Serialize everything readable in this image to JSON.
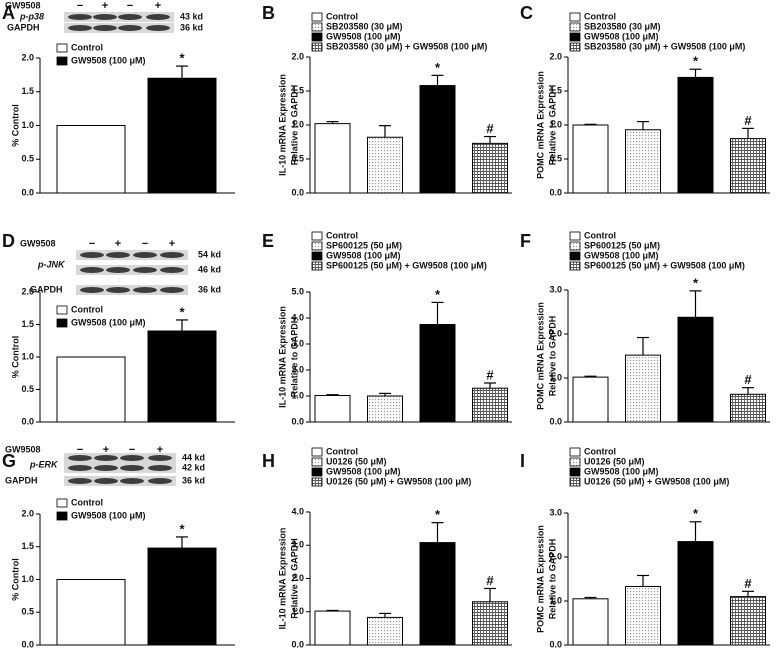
{
  "chart_data": [
    {
      "type": "bar",
      "label": "A",
      "blot": {
        "lanes_label": "GW9508",
        "lanes": [
          "−",
          "+",
          "−",
          "+"
        ],
        "rows": [
          "p-p38",
          "GAPDH"
        ],
        "sizes": [
          "43 kd",
          "36 kd"
        ]
      },
      "ylabel": [
        "% Control"
      ],
      "ylim": [
        0,
        2.0
      ],
      "yticks": [
        {
          "value": 0,
          "label": "0.0"
        },
        0.5,
        {
          "value": 1,
          "label": "1.0"
        },
        1.5,
        {
          "value": 2,
          "label": "2.0"
        }
      ],
      "series": [
        {
          "name": "Control",
          "color": "#ffffff",
          "values": [
            1.0
          ]
        },
        {
          "name": "GW9508 (100 μM)",
          "color": "#000000",
          "values": [
            1.7
          ],
          "errors": [
            0.18
          ],
          "annotation": "*"
        }
      ]
    },
    {
      "type": "bar",
      "label": "B",
      "ylabel": [
        "IL-10 mRNA Expression",
        "Relative to GAPDH"
      ],
      "ylim": [
        0,
        2.0
      ],
      "yticks": [
        {
          "value": 0,
          "label": "0.0"
        },
        0.5,
        {
          "value": 1,
          "label": "1.0"
        },
        1.5,
        {
          "value": 2,
          "label": "2.0"
        }
      ],
      "series": [
        {
          "name": "Control",
          "color": "#ffffff",
          "values": [
            1.02
          ],
          "errors": [
            0.03
          ]
        },
        {
          "name": "SB203580 (30 μM)",
          "color": "#9a9a9a",
          "pattern": "dots",
          "values": [
            0.82
          ],
          "errors": [
            0.17
          ]
        },
        {
          "name": "GW9508 (100 μM)",
          "color": "#000000",
          "values": [
            1.58
          ],
          "errors": [
            0.15
          ],
          "annotation": "*"
        },
        {
          "name": "SB203580 (30 μM) + GW9508 (100 μM)",
          "color": "#555555",
          "pattern": "grid",
          "values": [
            0.73
          ],
          "errors": [
            0.1
          ],
          "annotation": "#"
        }
      ]
    },
    {
      "type": "bar",
      "label": "C",
      "ylabel": [
        "POMC mRNA Expression",
        "Relative to GAPDH"
      ],
      "ylim": [
        0,
        2.0
      ],
      "yticks": [
        {
          "value": 0,
          "label": "0.0"
        },
        0.5,
        {
          "value": 1,
          "label": "1.0"
        },
        1.5,
        {
          "value": 2,
          "label": "2.0"
        }
      ],
      "series": [
        {
          "name": "Control",
          "color": "#ffffff",
          "values": [
            1.0
          ],
          "errors": [
            0.01
          ]
        },
        {
          "name": "SB203580 (30 μM)",
          "color": "#9a9a9a",
          "pattern": "dots",
          "values": [
            0.93
          ],
          "errors": [
            0.12
          ]
        },
        {
          "name": "GW9508 (100 μM)",
          "color": "#000000",
          "values": [
            1.7
          ],
          "errors": [
            0.12
          ],
          "annotation": "*"
        },
        {
          "name": "SB203580 (30 μM) + GW9508 (100 μM)",
          "color": "#555555",
          "pattern": "grid",
          "values": [
            0.8
          ],
          "errors": [
            0.15
          ],
          "annotation": "#"
        }
      ]
    },
    {
      "type": "bar",
      "label": "D",
      "blot": {
        "lanes_label": "GW9508",
        "lanes": [
          "−",
          "+",
          "−",
          "+"
        ],
        "rows": [
          "p-JNK",
          "GAPDH"
        ],
        "sizes": [
          "54 kd",
          "46 kd",
          "36 kd"
        ]
      },
      "ylabel": [
        "% Control"
      ],
      "ylim": [
        0,
        2.0
      ],
      "yticks": [
        {
          "value": 0,
          "label": "0.0"
        },
        0.5,
        {
          "value": 1,
          "label": "1.0"
        },
        1.5,
        {
          "value": 2,
          "label": "2.0"
        }
      ],
      "series": [
        {
          "name": "Control",
          "color": "#ffffff",
          "values": [
            1.0
          ]
        },
        {
          "name": "GW9508 (100 μM)",
          "color": "#000000",
          "values": [
            1.4
          ],
          "errors": [
            0.17
          ],
          "annotation": "*"
        }
      ]
    },
    {
      "type": "bar",
      "label": "E",
      "ylabel": [
        "IL-10 mRNA Expression",
        "Relative to GAPDH"
      ],
      "ylim": [
        0,
        5.0
      ],
      "yticks": [
        {
          "value": 0,
          "label": "0.0"
        },
        {
          "value": 1,
          "label": "1.0"
        },
        {
          "value": 2,
          "label": "2.0"
        },
        {
          "value": 3,
          "label": "3.0"
        },
        {
          "value": 4,
          "label": "4.0"
        },
        {
          "value": 5,
          "label": "5.0"
        }
      ],
      "series": [
        {
          "name": "Control",
          "color": "#ffffff",
          "values": [
            1.02
          ],
          "errors": [
            0.03
          ]
        },
        {
          "name": "SP600125 (50 μM)",
          "color": "#9a9a9a",
          "pattern": "dots",
          "values": [
            1.0
          ],
          "errors": [
            0.1
          ]
        },
        {
          "name": "GW9508 (100 μM)",
          "color": "#000000",
          "values": [
            3.75
          ],
          "errors": [
            0.85
          ],
          "annotation": "*"
        },
        {
          "name": "SP600125 (50 μM) + GW9508 (100 μM)",
          "color": "#555555",
          "pattern": "grid",
          "values": [
            1.3
          ],
          "errors": [
            0.2
          ],
          "annotation": "#"
        }
      ]
    },
    {
      "type": "bar",
      "label": "F",
      "ylabel": [
        "POMC mRNA Expression",
        "Relative to GAPDH"
      ],
      "ylim": [
        0,
        3.0
      ],
      "yticks": [
        {
          "value": 0,
          "label": "0.0"
        },
        {
          "value": 1,
          "label": "1.0"
        },
        {
          "value": 2,
          "label": "2.0"
        },
        {
          "value": 3,
          "label": "3.0"
        }
      ],
      "series": [
        {
          "name": "Control",
          "color": "#ffffff",
          "values": [
            1.02
          ],
          "errors": [
            0.02
          ]
        },
        {
          "name": "SP600125 (50 μM)",
          "color": "#9a9a9a",
          "pattern": "dots",
          "values": [
            1.52
          ],
          "errors": [
            0.4
          ]
        },
        {
          "name": "GW9508 (100 μM)",
          "color": "#000000",
          "values": [
            2.38
          ],
          "errors": [
            0.6
          ],
          "annotation": "*"
        },
        {
          "name": "SP600125 (50 μM) + GW9508 (100 μM)",
          "color": "#555555",
          "pattern": "grid",
          "values": [
            0.63
          ],
          "errors": [
            0.15
          ],
          "annotation": "#"
        }
      ]
    },
    {
      "type": "bar",
      "label": "G",
      "blot": {
        "lanes_label": "GW9508",
        "lanes": [
          "−",
          "+",
          "−",
          "+"
        ],
        "rows": [
          "p-ERK",
          "GAPDH"
        ],
        "sizes": [
          "44 kd",
          "42 kd",
          "36 kd"
        ]
      },
      "ylabel": [
        "% Control"
      ],
      "ylim": [
        0,
        2.0
      ],
      "yticks": [
        {
          "value": 0,
          "label": "0.0"
        },
        0.5,
        {
          "value": 1,
          "label": "1.0"
        },
        1.5,
        {
          "value": 2,
          "label": "2.0"
        }
      ],
      "series": [
        {
          "name": "Control",
          "color": "#ffffff",
          "values": [
            1.0
          ]
        },
        {
          "name": "GW9508 (100 μM)",
          "color": "#000000",
          "values": [
            1.48
          ],
          "errors": [
            0.17
          ],
          "annotation": "*"
        }
      ]
    },
    {
      "type": "bar",
      "label": "H",
      "ylabel": [
        "IL-10 mRNA Expression",
        "Relative to GAPDH"
      ],
      "ylim": [
        0,
        4.0
      ],
      "yticks": [
        {
          "value": 0,
          "label": "0.0"
        },
        {
          "value": 1,
          "label": "1.0"
        },
        {
          "value": 2,
          "label": "2.0"
        },
        {
          "value": 3,
          "label": "3.0"
        },
        {
          "value": 4,
          "label": "4.0"
        }
      ],
      "series": [
        {
          "name": "Control",
          "color": "#ffffff",
          "values": [
            1.02
          ],
          "errors": [
            0.02
          ]
        },
        {
          "name": "U0126 (50 μM)",
          "color": "#9a9a9a",
          "pattern": "dots",
          "values": [
            0.83
          ],
          "errors": [
            0.12
          ]
        },
        {
          "name": "GW9508 (100 μM)",
          "color": "#000000",
          "values": [
            3.08
          ],
          "errors": [
            0.6
          ],
          "annotation": "*"
        },
        {
          "name": "U0126 (50 μM) + GW9508 (100 μM)",
          "color": "#555555",
          "pattern": "grid",
          "values": [
            1.3
          ],
          "errors": [
            0.4
          ],
          "annotation": "#"
        }
      ]
    },
    {
      "type": "bar",
      "label": "I",
      "ylabel": [
        "POMC mRNA Expression",
        "Relative to GAPDH"
      ],
      "ylim": [
        0,
        3.0
      ],
      "yticks": [
        {
          "value": 0,
          "label": "0.0"
        },
        {
          "value": 1,
          "label": "1.0"
        },
        {
          "value": 2,
          "label": "2.0"
        },
        {
          "value": 3,
          "label": "3.0"
        }
      ],
      "series": [
        {
          "name": "Control",
          "color": "#ffffff",
          "values": [
            1.05
          ],
          "errors": [
            0.03
          ]
        },
        {
          "name": "U0126 (50 μM)",
          "color": "#9a9a9a",
          "pattern": "dots",
          "values": [
            1.33
          ],
          "errors": [
            0.25
          ]
        },
        {
          "name": "GW9508 (100 μM)",
          "color": "#000000",
          "values": [
            2.35
          ],
          "errors": [
            0.45
          ],
          "annotation": "*"
        },
        {
          "name": "U0126 (50 μM) + GW9508 (100 μM)",
          "color": "#555555",
          "pattern": "grid",
          "values": [
            1.1
          ],
          "errors": [
            0.12
          ],
          "annotation": "#"
        }
      ]
    }
  ]
}
